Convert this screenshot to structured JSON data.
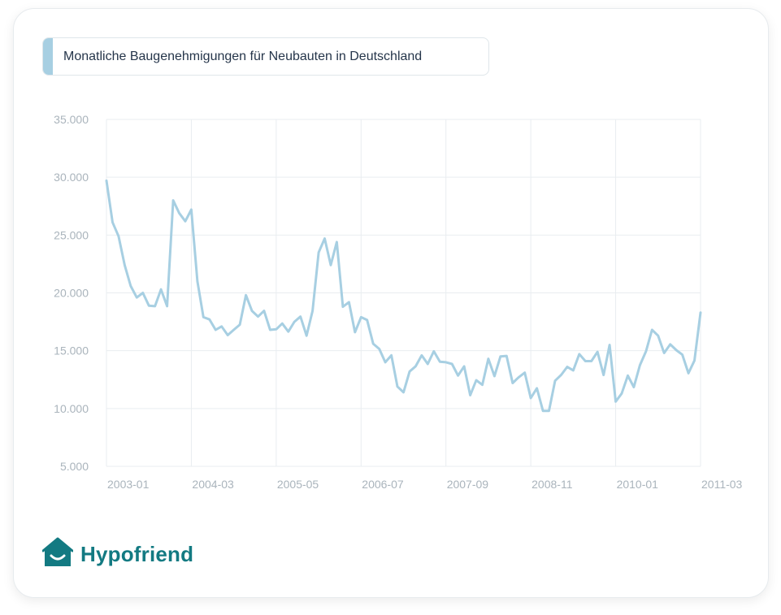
{
  "title": "Monatliche Baugenehmigungen für Neubauten in Deutschland",
  "brand": {
    "name": "Hypofriend",
    "icon": "house-smile-icon"
  },
  "colors": {
    "line": "#a7cfe2",
    "accent": "#a7cfe2",
    "brand": "#137a82",
    "grid": "#e9edf0"
  },
  "chart_data": {
    "type": "line",
    "title": "Monatliche Baugenehmigungen für Neubauten in Deutschland",
    "xlabel": "",
    "ylabel": "",
    "ylim": [
      5000,
      35000
    ],
    "yticks": [
      5000,
      10000,
      15000,
      20000,
      25000,
      30000,
      35000
    ],
    "ytick_labels": [
      "5.000",
      "10.000",
      "15.000",
      "20.000",
      "25.000",
      "30.000",
      "35.000"
    ],
    "xlim": [
      "2003-01",
      "2011-03"
    ],
    "xtick_labels": [
      "2003-01",
      "2004-03",
      "2005-05",
      "2006-07",
      "2007-09",
      "2008-11",
      "2010-01",
      "2011-03"
    ],
    "grid": true,
    "legend": "none",
    "x_step_months": 1,
    "x_start": "2003-01",
    "series": [
      {
        "values": [
          29700,
          26100,
          24900,
          22400,
          20600,
          19600,
          20000,
          18900,
          18850,
          20300,
          18850,
          28000,
          26900,
          26200,
          27200,
          21000,
          17900,
          17700,
          16800,
          17100,
          16350,
          16800,
          17250,
          19800,
          18450,
          17950,
          18450,
          16800,
          16850,
          17350,
          16650,
          17500,
          17950,
          16300,
          18450,
          23500,
          24700,
          22400,
          24400,
          18800,
          19200,
          16600,
          17900,
          17650,
          15600,
          15150,
          14000,
          14600,
          11900,
          11400,
          13200,
          13650,
          14600,
          13850,
          14950,
          14050,
          14000,
          13850,
          12850,
          13650,
          11150,
          12450,
          12050,
          14300,
          12800,
          14500,
          14550,
          12200,
          12700,
          13100,
          10900,
          11750,
          9800,
          9800,
          12400,
          12900,
          13600,
          13300,
          14700,
          14100,
          14100,
          14900,
          12900,
          15500,
          10600,
          11300,
          12850,
          11850,
          13750,
          14950,
          16800,
          16300,
          14800,
          15550,
          15050,
          14650,
          13050,
          14150,
          18300
        ]
      }
    ]
  }
}
